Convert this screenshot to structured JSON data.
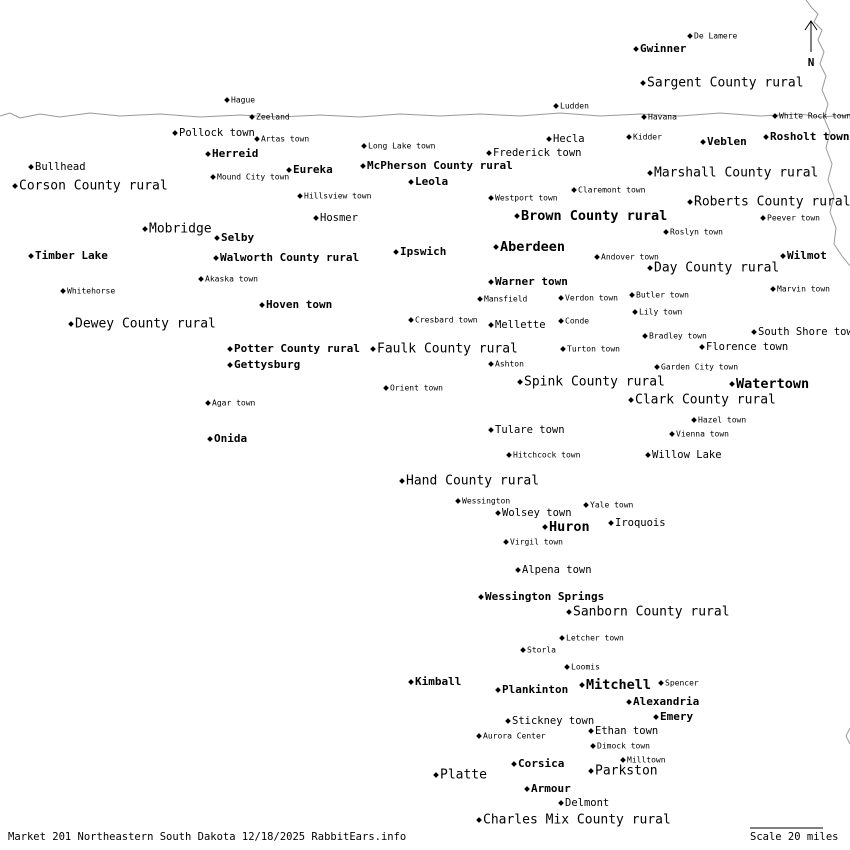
{
  "places": [
    "De Lamere",
    "Gwinner",
    "Sargent County rural",
    "Hague",
    "Zeeland",
    "Ludden",
    "Havana",
    "White Rock town",
    "Pollock town",
    "Artas town",
    "Hecla",
    "Kidder",
    "Veblen",
    "Rosholt town",
    "Long Lake town",
    "Frederick town",
    "Herreid",
    "Bullhead",
    "McPherson County rural",
    "Eureka",
    "Mound City town",
    "Marshall County rural",
    "Leola",
    "Corson County rural",
    "Claremont town",
    "Hillsview town",
    "Westport town",
    "Roberts County rural",
    "Hosmer",
    "Brown County rural",
    "Peever town",
    "Mobridge",
    "Roslyn town",
    "Selby",
    "Aberdeen",
    "Ipswich",
    "Andover town",
    "Timber Lake",
    "Walworth County rural",
    "Wilmot",
    "Day County rural",
    "Akaska town",
    "Warner town",
    "Whitehorse",
    "Marvin town",
    "Butler town",
    "Mansfield",
    "Verdon town",
    "Hoven town",
    "Lily town",
    "Cresbard town",
    "Conde",
    "Dewey County rural",
    "Mellette",
    "South Shore town",
    "Bradley town",
    "Florence town",
    "Potter County rural",
    "Faulk County rural",
    "Turton town",
    "Ashton",
    "Gettysburg",
    "Garden City town",
    "Spink County rural",
    "Watertown",
    "Orient town",
    "Clark County rural",
    "Agar town",
    "Hazel town",
    "Tulare town",
    "Vienna town",
    "Onida",
    "Hitchcock town",
    "Willow Lake",
    "Hand County rural",
    "Wessington",
    "Yale town",
    "Wolsey town",
    "Huron",
    "Iroquois",
    "Virgil town",
    "Alpena town",
    "Wessington Springs",
    "Sanborn County rural",
    "Letcher town",
    "Storla",
    "Loomis",
    "Kimball",
    "Spencer",
    "Mitchell",
    "Plankinton",
    "Alexandria",
    "Emery",
    "Stickney town",
    "Ethan town",
    "Aurora Center",
    "Dimock town",
    "Milltown",
    "Corsica",
    "Parkston",
    "Platte",
    "Armour",
    "Delmont",
    "Charles Mix County rural"
  ],
  "compass": "N",
  "footer": {
    "caption": "Market 201 Northeastern South Dakota 12/18/2025 RabbitEars.info",
    "scale": "Scale 20 miles"
  }
}
